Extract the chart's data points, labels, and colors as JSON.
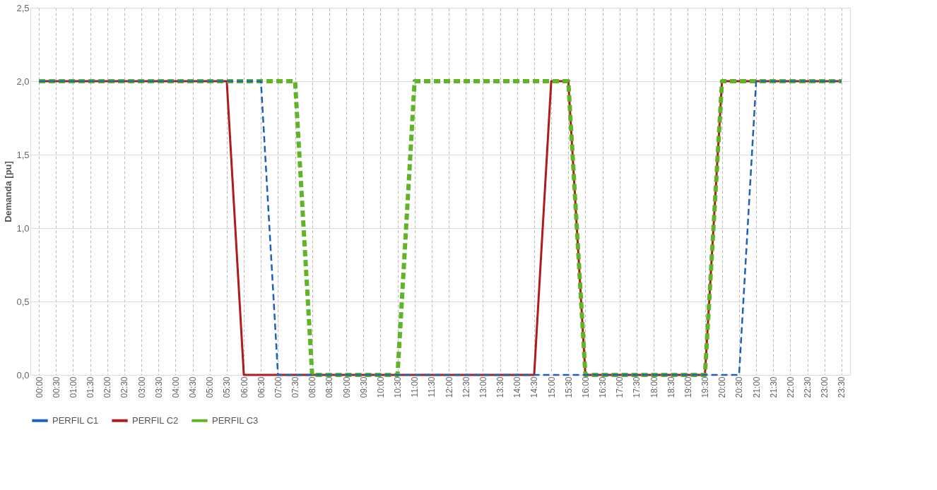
{
  "chart_data": {
    "type": "line",
    "ylabel": "Demanda [pu]",
    "categories": [
      "00:00",
      "00:30",
      "01:00",
      "01:30",
      "02:00",
      "02:30",
      "03:00",
      "03:30",
      "04:00",
      "04:30",
      "05:00",
      "05:30",
      "06:00",
      "06:30",
      "07:00",
      "07:30",
      "08:00",
      "08:30",
      "09:00",
      "09:30",
      "10:00",
      "10:30",
      "11:00",
      "11:30",
      "12:00",
      "12:30",
      "13:00",
      "13:30",
      "14:00",
      "14:30",
      "15:00",
      "15:30",
      "16:00",
      "16:30",
      "17:00",
      "17:30",
      "18:00",
      "18:30",
      "19:00",
      "19:30",
      "20:00",
      "20:30",
      "21:00",
      "21:30",
      "22:00",
      "22:30",
      "23:00",
      "23:30"
    ],
    "series": [
      {
        "name": "PERFIL C1",
        "color": "#1f5fbf",
        "line_style": "dashed",
        "values": [
          2,
          2,
          2,
          2,
          2,
          2,
          2,
          2,
          2,
          2,
          2,
          2,
          2,
          2,
          0,
          0,
          0,
          0,
          0,
          0,
          0,
          0,
          0,
          0,
          0,
          0,
          0,
          0,
          0,
          0,
          0,
          0,
          0,
          0,
          0,
          0,
          0,
          0,
          0,
          0,
          0,
          0,
          2,
          2,
          2,
          2,
          2,
          2
        ]
      },
      {
        "name": "PERFIL C2",
        "color": "#b01c1c",
        "line_style": "solid",
        "values": [
          2,
          2,
          2,
          2,
          2,
          2,
          2,
          2,
          2,
          2,
          2,
          2,
          0,
          0,
          0,
          0,
          0,
          0,
          0,
          0,
          0,
          0,
          0,
          0,
          0,
          0,
          0,
          0,
          0,
          0,
          2,
          2,
          0,
          0,
          0,
          0,
          0,
          0,
          0,
          0,
          2,
          2,
          2,
          2,
          2,
          2,
          2,
          2
        ]
      },
      {
        "name": "PERFIL C3",
        "color": "#5fb526",
        "line_style": "dashed",
        "values": [
          2,
          2,
          2,
          2,
          2,
          2,
          2,
          2,
          2,
          2,
          2,
          2,
          2,
          2,
          2,
          2,
          0,
          0,
          0,
          0,
          0,
          0,
          2,
          2,
          2,
          2,
          2,
          2,
          2,
          2,
          2,
          2,
          0,
          0,
          0,
          0,
          0,
          0,
          0,
          0,
          2,
          2,
          2,
          2,
          2,
          2,
          2,
          2
        ]
      }
    ],
    "ylim": [
      0,
      2.5
    ],
    "yticks": [
      {
        "value": 0,
        "label": "0,0"
      },
      {
        "value": 0.5,
        "label": "0,5"
      },
      {
        "value": 1,
        "label": "1,0"
      },
      {
        "value": 1.5,
        "label": "1,5"
      },
      {
        "value": 2,
        "label": "2,0"
      },
      {
        "value": 2.5,
        "label": "2,5"
      }
    ],
    "grid": true,
    "legend": "bottom",
    "marker": "none"
  }
}
